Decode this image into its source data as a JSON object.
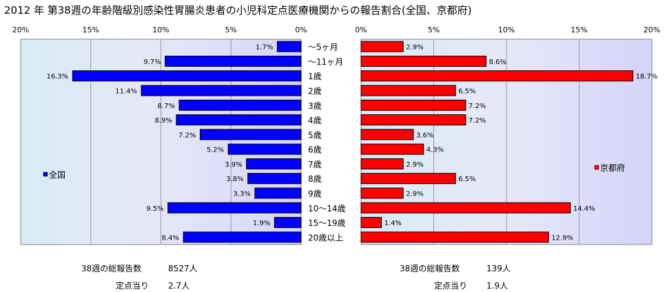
{
  "title": "2012 年 第38週の年齢階級別感染性胃腸炎患者の小児科定点医療機関からの報告割合(全国、京都府)",
  "chart_data": [
    {
      "type": "bar",
      "orientation": "horizontal",
      "direction": "right-to-left",
      "series": [
        {
          "name": "全国",
          "color": "#0000ff",
          "values": [
            1.7,
            9.7,
            16.3,
            11.4,
            8.7,
            8.9,
            7.2,
            5.2,
            3.9,
            3.8,
            3.3,
            9.5,
            1.9,
            8.4
          ]
        }
      ],
      "value_labels": [
        "1.7%",
        "9.7%",
        "16.3%",
        "11.4%",
        "8.7%",
        "8.9%",
        "7.2%",
        "5.2%",
        "3.9%",
        "3.8%",
        "3.3%",
        "9.5%",
        "1.9%",
        "8.4%"
      ],
      "xlim": [
        0,
        20
      ],
      "ticks": [
        "20%",
        "15%",
        "10%",
        "5%",
        "0%"
      ],
      "grid": true,
      "legend": "left"
    },
    {
      "type": "bar",
      "orientation": "horizontal",
      "direction": "left-to-right",
      "series": [
        {
          "name": "京都府",
          "color": "#ff0000",
          "values": [
            2.9,
            8.6,
            18.7,
            6.5,
            7.2,
            7.2,
            3.6,
            4.3,
            2.9,
            6.5,
            2.9,
            14.4,
            1.4,
            12.9
          ]
        }
      ],
      "value_labels": [
        "2.9%",
        "8.6%",
        "18.7%",
        "6.5%",
        "7.2%",
        "7.2%",
        "3.6%",
        "4.3%",
        "2.9%",
        "6.5%",
        "2.9%",
        "14.4%",
        "1.4%",
        "12.9%"
      ],
      "xlim": [
        0,
        20
      ],
      "ticks": [
        "0%",
        "5%",
        "10%",
        "15%",
        "20%"
      ],
      "grid": true,
      "legend": "right"
    }
  ],
  "categories": [
    "〜5ヶ月",
    "〜11ヶ月",
    "1歳",
    "2歳",
    "3歳",
    "4歳",
    "5歳",
    "6歳",
    "7歳",
    "8歳",
    "9歳",
    "10〜14歳",
    "15〜19歳",
    "20歳以上"
  ],
  "footer": {
    "left": {
      "total_label": "38週の総報告数",
      "total_value": "8527人",
      "per_label": "定点当り",
      "per_value": "2.7人"
    },
    "right": {
      "total_label": "38週の総報告数",
      "total_value": "139人",
      "per_label": "定点当り",
      "per_value": "1.9人"
    }
  }
}
